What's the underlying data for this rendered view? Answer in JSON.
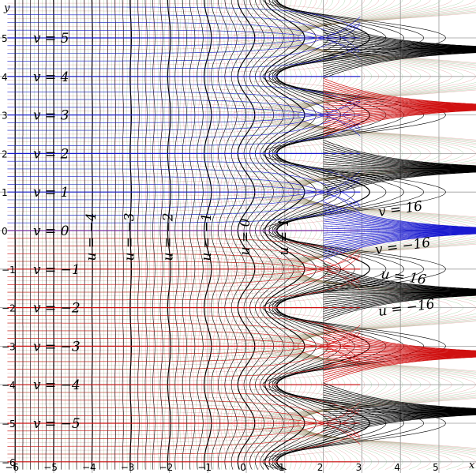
{
  "axes": {
    "x_label": "x",
    "y_label": "y",
    "x_range": [
      -6,
      6
    ],
    "y_range": [
      -6,
      6
    ],
    "x_ticks": [
      "−6",
      "−5",
      "−4",
      "−3",
      "−2",
      "−1",
      "0",
      "1",
      "2",
      "3",
      "4",
      "5"
    ],
    "y_ticks": [
      "−6",
      "−5",
      "−4",
      "−3",
      "−2",
      "−1",
      "0",
      "1",
      "2",
      "3",
      "4",
      "5"
    ],
    "grid": true
  },
  "v_labels": [
    {
      "text": "v = 5",
      "v": 5
    },
    {
      "text": "v = 4",
      "v": 4
    },
    {
      "text": "v = 3",
      "v": 3
    },
    {
      "text": "v = 2",
      "v": 2
    },
    {
      "text": "v = 1",
      "v": 1
    },
    {
      "text": "v = 0",
      "v": 0
    },
    {
      "text": "v = −1",
      "v": -1
    },
    {
      "text": "v = −2",
      "v": -2
    },
    {
      "text": "v = −3",
      "v": -3
    },
    {
      "text": "v = −4",
      "v": -4
    },
    {
      "text": "v = −5",
      "v": -5
    }
  ],
  "u_labels": [
    {
      "text": "u = −4",
      "u": -4
    },
    {
      "text": "u = −3",
      "u": -3
    },
    {
      "text": "u = −2",
      "u": -2
    },
    {
      "text": "u = −1",
      "u": -1
    },
    {
      "text": "u = 0",
      "u": 0
    },
    {
      "text": "u = 1",
      "u": 1
    }
  ],
  "right_labels": [
    {
      "text": "v = 16"
    },
    {
      "text": "v = −16"
    },
    {
      "text": "u = 16"
    },
    {
      "text": "u = −16"
    }
  ],
  "colors": {
    "grid": "#9a9a9a",
    "v_positive": "#1a1ad0",
    "v_negative": "#d01010",
    "u_major": "#000000",
    "fine_green": "#3a9a3a",
    "fine_red": "#c04040"
  }
}
